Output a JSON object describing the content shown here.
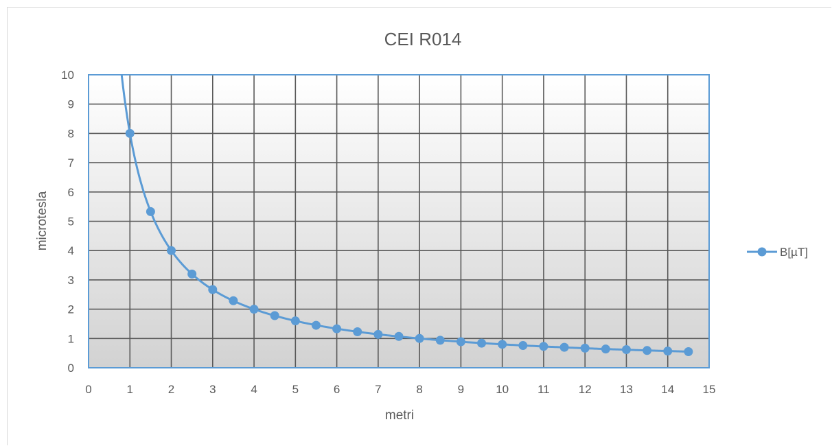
{
  "chart_data": {
    "type": "scatter",
    "title": "CEI R014",
    "xlabel": "metri",
    "ylabel": "microtesla",
    "xlim": [
      0,
      15
    ],
    "ylim": [
      0,
      10
    ],
    "x_ticks": [
      "0",
      "1",
      "2",
      "3",
      "4",
      "5",
      "6",
      "7",
      "8",
      "9",
      "10",
      "11",
      "12",
      "13",
      "14",
      "15"
    ],
    "y_ticks": [
      "0",
      "1",
      "2",
      "3",
      "4",
      "5",
      "6",
      "7",
      "8",
      "9",
      "10"
    ],
    "grid": true,
    "legend_position": "right",
    "smooth_line": true,
    "series": [
      {
        "name": "B[µT]",
        "color": "#5b9bd5",
        "x": [
          1,
          1.5,
          2,
          2.5,
          3,
          3.5,
          4,
          4.5,
          5,
          5.5,
          6,
          6.5,
          7,
          7.5,
          8,
          8.5,
          9,
          9.5,
          10,
          10.5,
          11,
          11.5,
          12,
          12.5,
          13,
          13.5,
          14,
          14.5
        ],
        "y": [
          8.0,
          5.33,
          4.0,
          3.2,
          2.67,
          2.29,
          2.0,
          1.78,
          1.6,
          1.45,
          1.33,
          1.23,
          1.14,
          1.07,
          1.0,
          0.94,
          0.89,
          0.84,
          0.8,
          0.76,
          0.73,
          0.7,
          0.67,
          0.64,
          0.62,
          0.59,
          0.57,
          0.55
        ]
      }
    ]
  }
}
